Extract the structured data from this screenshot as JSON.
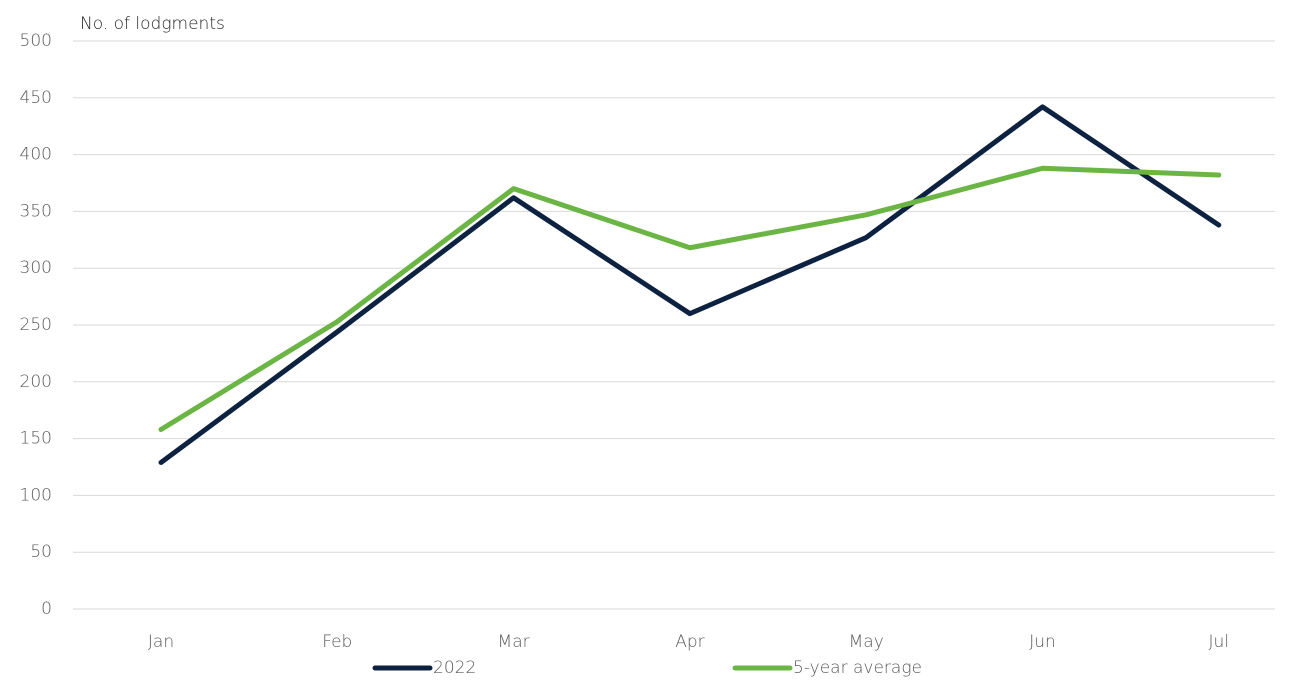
{
  "chart_data": {
    "type": "line",
    "y_axis_label": "No. of lodgments",
    "categories": [
      "Jan",
      "Feb",
      "Mar",
      "Apr",
      "May",
      "Jun",
      "Jul"
    ],
    "series": [
      {
        "name": "2022",
        "color": "#0d2240",
        "values": [
          129,
          244,
          362,
          260,
          327,
          442,
          338
        ]
      },
      {
        "name": "5-year average",
        "color": "#6bb545",
        "values": [
          158,
          253,
          370,
          318,
          347,
          388,
          382
        ]
      }
    ],
    "ylim": [
      0,
      500
    ],
    "yticks": [
      0,
      50,
      100,
      150,
      200,
      250,
      300,
      350,
      400,
      450,
      500
    ],
    "grid": true,
    "legend": "bottom"
  }
}
